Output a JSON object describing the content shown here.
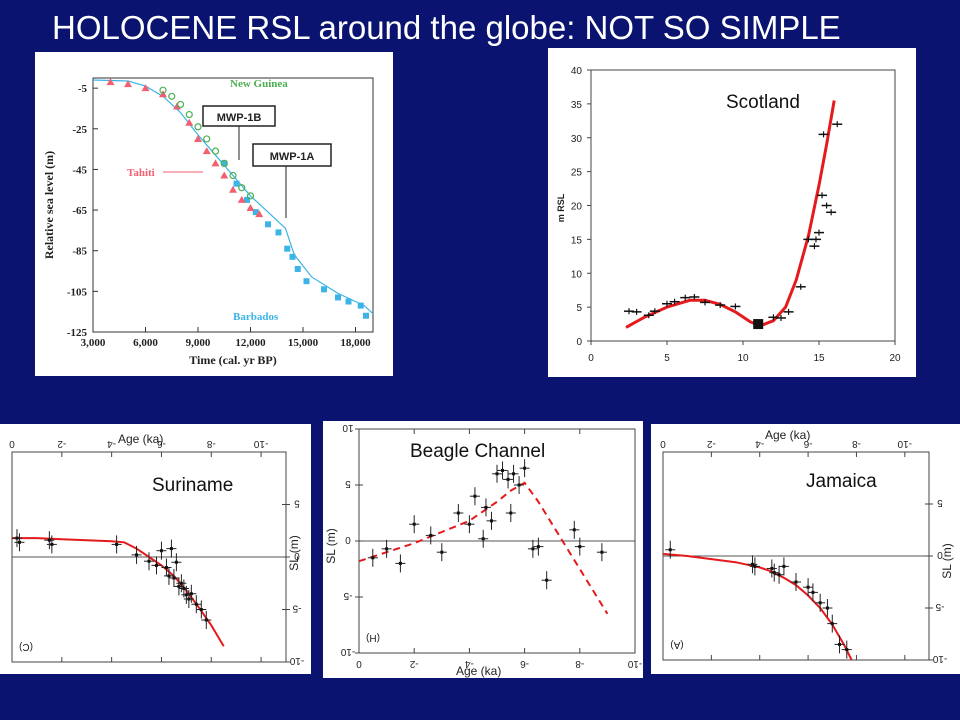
{
  "title": "HOLOCENE RSL around the globe: NOT SO SIMPLE",
  "colors": {
    "background": "#0a1470",
    "curve": "#e41a1c",
    "barbados": "#3cb4e6",
    "tahiti": "#f06070",
    "newguinea": "#4caf50"
  },
  "chart_data": [
    {
      "id": "global",
      "type": "scatter",
      "xlabel": "Time (cal. yr BP)",
      "ylabel": "Relative sea level (m)",
      "xlim": [
        3000,
        19000
      ],
      "ylim": [
        -125,
        0
      ],
      "x_ticks": [
        3000,
        6000,
        9000,
        12000,
        15000,
        18000
      ],
      "x_tick_labels": [
        "3,000",
        "6,000",
        "9,000",
        "12,000",
        "15,000",
        "18,000"
      ],
      "y_ticks": [
        -5,
        -25,
        -45,
        -65,
        -85,
        -105,
        -125
      ],
      "y_tick_labels": [
        "-5",
        "-25",
        "-45",
        "-65",
        "-85",
        "-105",
        "-125"
      ],
      "annotations": {
        "new_guinea": "New Guinea",
        "mwp1b": "MWP-1B",
        "mwp1a": "MWP-1A",
        "tahiti": "Tahiti",
        "barbados": "Barbados"
      },
      "series": [
        {
          "name": "Barbados",
          "x": [
            10500,
            11200,
            11800,
            12300,
            13000,
            13600,
            14100,
            14400,
            14700,
            15200,
            16200,
            17000,
            17600,
            18300,
            18600
          ],
          "y": [
            -42,
            -52,
            -60,
            -66,
            -72,
            -76,
            -84,
            -88,
            -94,
            -100,
            -104,
            -108,
            -110,
            -112,
            -117
          ]
        },
        {
          "name": "Tahiti",
          "x": [
            4000,
            5000,
            6000,
            7000,
            7800,
            8500,
            9000,
            9500,
            10000,
            10500,
            11000,
            11500,
            12000,
            12500
          ],
          "y": [
            -2,
            -3,
            -5,
            -8,
            -14,
            -22,
            -30,
            -36,
            -42,
            -48,
            -55,
            -60,
            -64,
            -67
          ]
        },
        {
          "name": "New Guinea",
          "x": [
            7000,
            7500,
            8000,
            8500,
            9000,
            9500,
            10000,
            10500,
            11000,
            11500,
            12000
          ],
          "y": [
            -6,
            -9,
            -13,
            -18,
            -24,
            -30,
            -36,
            -42,
            -48,
            -54,
            -58
          ]
        }
      ],
      "curve": {
        "x": [
          3000,
          5000,
          6000,
          7000,
          8000,
          9000,
          10000,
          11000,
          12000,
          13000,
          14000,
          14500,
          15500,
          17000,
          18500,
          19000
        ],
        "y": [
          -1,
          -1.5,
          -4,
          -9,
          -17,
          -28,
          -38,
          -48,
          -58,
          -66,
          -74,
          -87,
          -98,
          -106,
          -112,
          -116
        ]
      }
    },
    {
      "id": "scotland",
      "type": "scatter",
      "label": "Scotland",
      "ylabel": "m RSL",
      "xlim": [
        0,
        20
      ],
      "ylim": [
        0,
        40
      ],
      "x_ticks": [
        0,
        5,
        10,
        15,
        20
      ],
      "x_tick_labels": [
        "0",
        "5",
        "10",
        "15",
        "20"
      ],
      "y_ticks": [
        0,
        5,
        10,
        15,
        20,
        25,
        30,
        35,
        40
      ],
      "y_tick_labels": [
        "0",
        "5",
        "10",
        "15",
        "20",
        "25",
        "30",
        "35",
        "40"
      ],
      "points": {
        "x": [
          2.5,
          3.0,
          3.8,
          4.2,
          5.0,
          5.5,
          6.2,
          6.8,
          7.5,
          8.5,
          9.5,
          11.0,
          12.0,
          12.5,
          13.0,
          13.8,
          14.3,
          14.7,
          15.0,
          15.2,
          15.5,
          14.8,
          15.8,
          16.2,
          15.3
        ],
        "y": [
          4.4,
          4.3,
          3.8,
          4.4,
          5.5,
          5.8,
          6.4,
          6.5,
          5.7,
          5.3,
          5.1,
          2.5,
          3.5,
          3.4,
          4.3,
          8.0,
          15.0,
          14.0,
          16.0,
          21.5,
          20.0,
          15.0,
          19.0,
          32.0,
          30.5
        ]
      },
      "curve": {
        "x": [
          2.3,
          3.5,
          5.0,
          6.5,
          7.5,
          8.5,
          9.5,
          10.5,
          11.2,
          12.0,
          12.8,
          13.5,
          14.3,
          15.0,
          15.5,
          16.0
        ],
        "y": [
          2.0,
          3.5,
          5.0,
          6.0,
          6.0,
          5.4,
          4.3,
          2.8,
          2.3,
          3.0,
          5.0,
          9.0,
          15.5,
          23.0,
          29.0,
          35.5
        ]
      }
    },
    {
      "id": "suriname",
      "type": "scatter",
      "label": "Suriname",
      "panel_code": "(C)",
      "xlabel": "Age (ka)",
      "ylabel": "SL (m)",
      "xlim": [
        0,
        11
      ],
      "ylim": [
        -10,
        10
      ],
      "x_ticks": [
        0,
        2,
        4,
        6,
        8,
        10
      ],
      "x_tick_labels": [
        "0",
        "-2",
        "-4",
        "-6",
        "-8",
        "-10"
      ],
      "y_ticks": [
        -10,
        -5,
        0,
        5
      ],
      "y_tick_labels": [
        "-10",
        "-5",
        "0",
        "5"
      ],
      "points": {
        "x": [
          0.2,
          0.3,
          1.5,
          1.6,
          4.2,
          5.0,
          5.5,
          5.8,
          6.0,
          6.2,
          6.3,
          6.5,
          6.6,
          6.8,
          6.9,
          7.0,
          7.2,
          7.4,
          7.6,
          7.8,
          6.4,
          6.7,
          7.1
        ],
        "y": [
          1.8,
          1.4,
          1.6,
          1.2,
          1.2,
          0.2,
          -0.4,
          -0.8,
          0.6,
          -1.0,
          -1.8,
          -2.0,
          -0.5,
          -2.5,
          -3.0,
          -3.6,
          -3.5,
          -4.5,
          -5.0,
          -6.0,
          0.8,
          -2.8,
          -4.0
        ]
      },
      "curve": {
        "x": [
          0.0,
          1.0,
          2.0,
          3.0,
          4.0,
          4.5,
          5.0,
          5.5,
          6.0,
          6.5,
          7.0,
          7.5,
          8.0,
          8.5
        ],
        "y": [
          1.8,
          1.8,
          1.7,
          1.6,
          1.5,
          1.4,
          0.8,
          0.0,
          -0.8,
          -1.8,
          -3.2,
          -4.8,
          -6.5,
          -8.5
        ]
      }
    },
    {
      "id": "beagle",
      "type": "scatter",
      "label": "Beagle Channel",
      "panel_code": "(H)",
      "xlabel": "Age (ka)",
      "ylabel": "SL (m)",
      "xlim": [
        0,
        10
      ],
      "ylim": [
        -10,
        10
      ],
      "x_ticks": [
        0,
        2,
        4,
        6,
        8,
        10
      ],
      "x_tick_labels": [
        "0",
        "-2",
        "-4",
        "-6",
        "-8",
        "-10"
      ],
      "y_ticks": [
        -10,
        -5,
        0,
        5,
        10
      ],
      "y_tick_labels": [
        "-10",
        "-5",
        "0",
        "5",
        "10"
      ],
      "points": {
        "x": [
          0.5,
          1.0,
          1.5,
          2.0,
          2.6,
          3.0,
          3.6,
          4.0,
          4.2,
          4.5,
          4.6,
          4.8,
          5.0,
          5.2,
          5.4,
          5.6,
          5.8,
          6.0,
          6.3,
          6.8,
          7.8,
          8.0,
          8.8,
          5.5,
          6.5
        ],
        "y": [
          -1.5,
          -0.7,
          -2.0,
          1.5,
          0.5,
          -1.0,
          2.5,
          1.5,
          4.0,
          0.2,
          3.0,
          1.8,
          6.0,
          6.3,
          5.5,
          6.0,
          5.0,
          6.5,
          -0.7,
          -3.5,
          1.0,
          -0.5,
          -1.0,
          2.5,
          -0.5
        ]
      },
      "curve": {
        "x": [
          0.0,
          1.0,
          2.0,
          3.0,
          4.0,
          5.0,
          5.5,
          6.0,
          6.5,
          7.0,
          7.5,
          8.0,
          8.5,
          9.0
        ],
        "y": [
          -1.8,
          -1.0,
          -0.2,
          0.8,
          1.8,
          3.5,
          4.5,
          5.2,
          3.5,
          1.5,
          -0.5,
          -2.5,
          -4.5,
          -6.5
        ]
      }
    },
    {
      "id": "jamaica",
      "type": "scatter",
      "label": "Jamaica",
      "panel_code": "(A)",
      "xlabel": "Age (ka)",
      "ylabel": "SL (m)",
      "xlim": [
        0,
        11
      ],
      "ylim": [
        -10,
        10
      ],
      "x_ticks": [
        0,
        2,
        4,
        6,
        8,
        10
      ],
      "x_tick_labels": [
        "0",
        "-2",
        "-4",
        "-6",
        "-8",
        "-10"
      ],
      "y_ticks": [
        -10,
        -5,
        0,
        5
      ],
      "y_tick_labels": [
        "-10",
        "-5",
        "0",
        "5"
      ],
      "points": {
        "x": [
          0.3,
          3.7,
          3.8,
          4.5,
          4.6,
          4.8,
          5.0,
          5.5,
          6.0,
          6.2,
          6.5,
          6.8,
          7.0,
          7.3,
          7.6
        ],
        "y": [
          0.6,
          -0.8,
          -1.0,
          -1.2,
          -1.6,
          -1.8,
          -1.0,
          -2.5,
          -3.0,
          -3.5,
          -4.5,
          -5.0,
          -6.5,
          -8.5,
          -9.0
        ]
      },
      "curve": {
        "x": [
          0.0,
          1.0,
          2.0,
          3.0,
          4.0,
          4.5,
          5.0,
          5.5,
          6.0,
          6.5,
          7.0,
          7.5,
          7.8
        ],
        "y": [
          0.2,
          0.0,
          -0.3,
          -0.6,
          -1.1,
          -1.5,
          -2.1,
          -2.8,
          -3.8,
          -5.0,
          -6.6,
          -8.6,
          -10.0
        ]
      }
    }
  ]
}
